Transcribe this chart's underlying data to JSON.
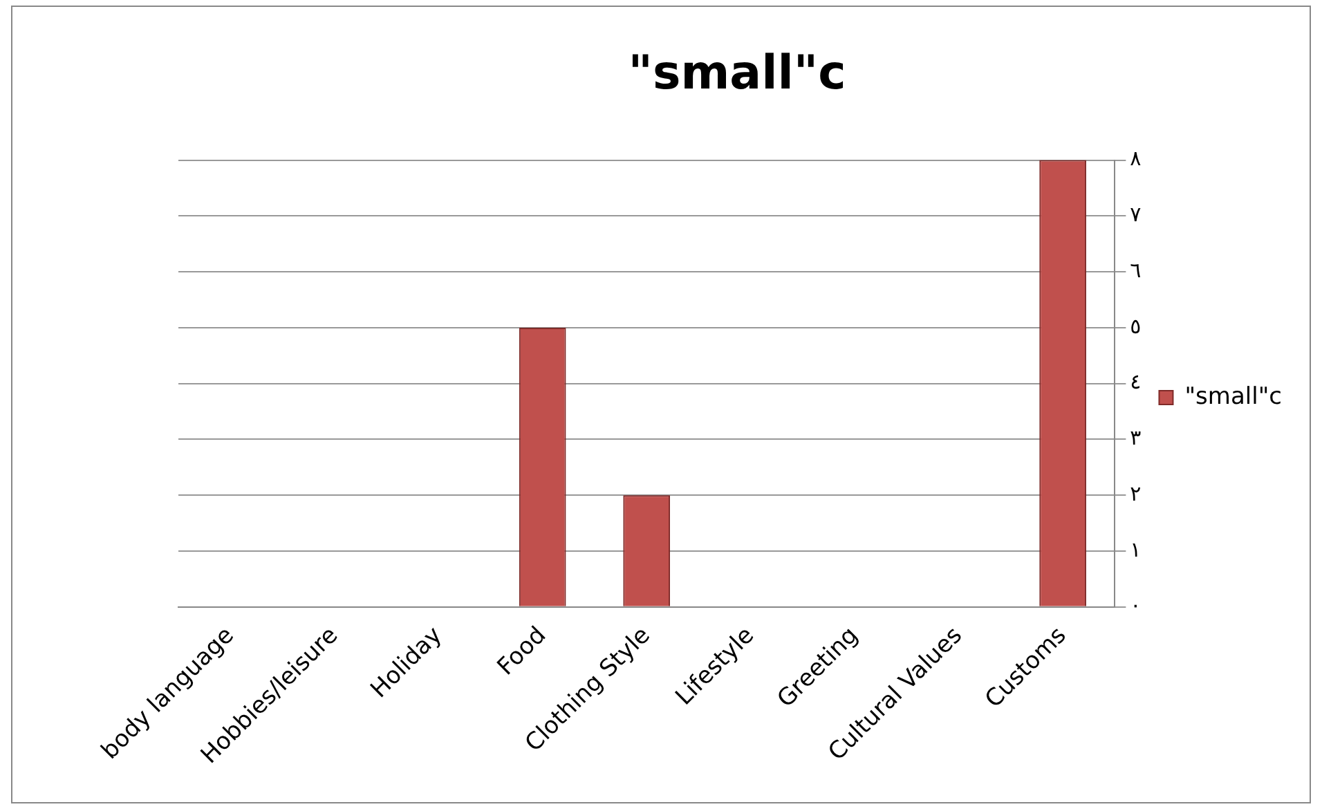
{
  "chart_data": {
    "type": "bar",
    "title": "\"small\"c",
    "categories": [
      "body language",
      "Hobbies/leisure",
      "Holiday",
      "Food",
      "Clothing Style",
      "Lifestyle",
      "Greeting",
      "Cultural Values",
      "Customs"
    ],
    "series": [
      {
        "name": "\"small\"c",
        "color": "#c0504d",
        "values": [
          0,
          0,
          0,
          5,
          2,
          0,
          0,
          0,
          8
        ]
      }
    ],
    "ylim": [
      0,
      8
    ],
    "yticks": [
      {
        "value": 0,
        "label": "٠"
      },
      {
        "value": 1,
        "label": "١"
      },
      {
        "value": 2,
        "label": "٢"
      },
      {
        "value": 3,
        "label": "٣"
      },
      {
        "value": 4,
        "label": "٤"
      },
      {
        "value": 5,
        "label": "٥"
      },
      {
        "value": 6,
        "label": "٦"
      },
      {
        "value": 7,
        "label": "٧"
      },
      {
        "value": 8,
        "label": "٨"
      }
    ],
    "grid": "y",
    "legend": "right"
  }
}
